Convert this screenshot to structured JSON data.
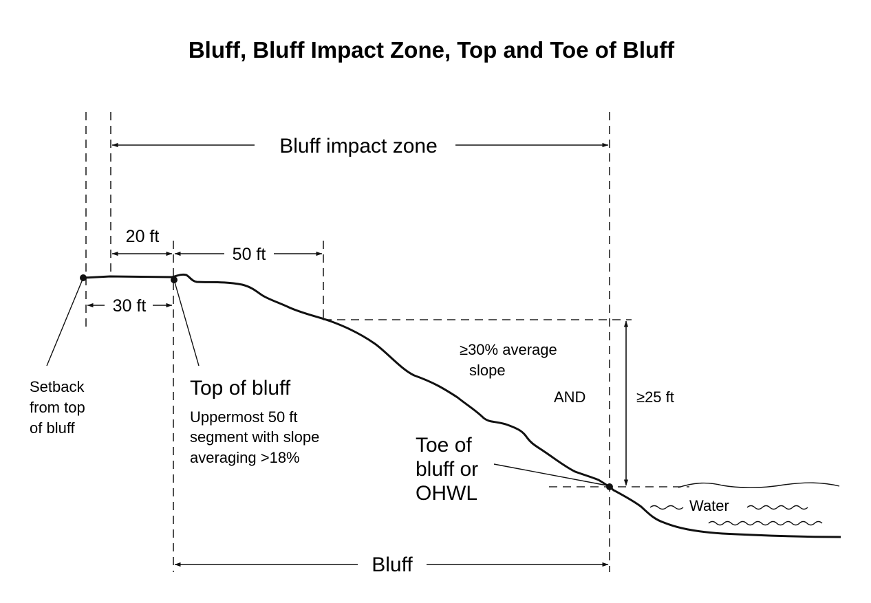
{
  "title": "Bluff, Bluff Impact Zone, Top and Toe of Bluff",
  "dimensions": {
    "bluff_impact_zone": "Bluff impact zone",
    "twenty_ft": "20 ft",
    "fifty_ft": "50 ft",
    "thirty_ft": "30 ft",
    "bluff": "Bluff",
    "height": "≥25 ft"
  },
  "labels": {
    "setback_line1": "Setback",
    "setback_line2": "from top",
    "setback_line3": "of bluff",
    "top_of_bluff": "Top of bluff",
    "top_desc_line1": "Uppermost 50 ft",
    "top_desc_line2": "segment with slope",
    "top_desc_line3": "averaging >18%",
    "toe_line1": "Toe of",
    "toe_line2": "bluff or",
    "toe_line3": "OHWL",
    "slope_line1": "≥30% average",
    "slope_line2": "slope",
    "and": "AND",
    "water": "Water"
  }
}
